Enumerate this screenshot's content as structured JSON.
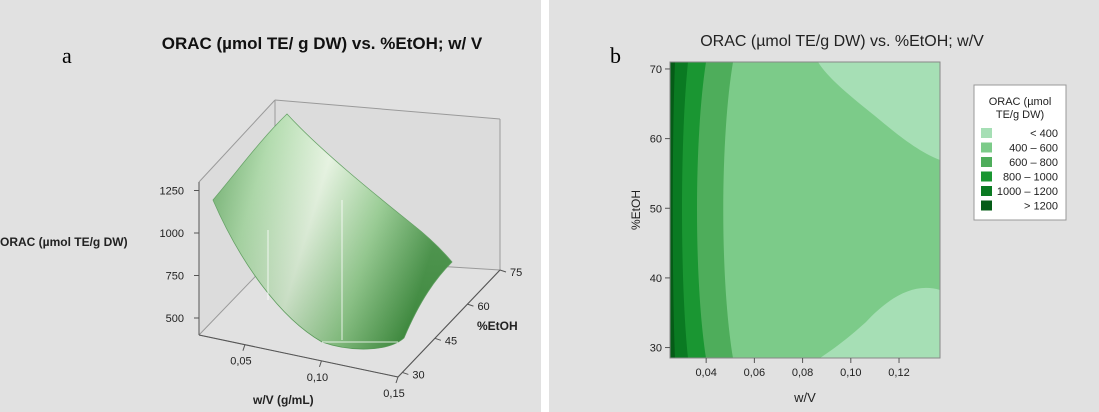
{
  "chart_data": [
    {
      "type": "surface3d",
      "panel_letter": "a",
      "title": "ORAC (µmol TE/ g  DW) vs. %EtOH; w/ V",
      "xlabel": "w/V (g/mL)",
      "ylabel": "%EtOH",
      "zlabel": "ORAC (µmol TE/g  DW)",
      "x_ticks": [
        "0,05",
        "0,10",
        "0,15"
      ],
      "x_tick_values": [
        0.05,
        0.1,
        0.15
      ],
      "y_ticks": [
        "30",
        "45",
        "60",
        "75"
      ],
      "y_tick_values": [
        30,
        45,
        60,
        75
      ],
      "z_ticks": [
        "500",
        "750",
        "1000",
        "1250"
      ],
      "z_tick_values": [
        500,
        750,
        1000,
        1250
      ],
      "xlim": [
        0.02,
        0.15
      ],
      "ylim": [
        28,
        75
      ],
      "zlim": [
        400,
        1300
      ],
      "surface_color": "#7cc17c",
      "background": "#e1e1e1"
    },
    {
      "type": "contour",
      "panel_letter": "b",
      "title": "ORAC (µmol TE/g  DW) vs. %EtOH; w/V",
      "xlabel": "w/V",
      "ylabel": "%EtOH",
      "x_ticks": [
        "0,04",
        "0,06",
        "0,08",
        "0,10",
        "0,12"
      ],
      "x_tick_values": [
        0.04,
        0.06,
        0.08,
        0.1,
        0.12
      ],
      "y_ticks": [
        "30",
        "40",
        "50",
        "60",
        "70"
      ],
      "y_tick_values": [
        30,
        40,
        50,
        60,
        70
      ],
      "xlim": [
        0.025,
        0.137
      ],
      "ylim": [
        28.5,
        71
      ],
      "legend_title": [
        "ORAC (µmol",
        "TE/g  DW)"
      ],
      "legend_position": "right",
      "levels": [
        {
          "label": "<   400",
          "color": "#a6dfb5"
        },
        {
          "label": "400  –   600",
          "color": "#7ccb89"
        },
        {
          "label": "600  –   800",
          "color": "#4ead5b"
        },
        {
          "label": "800  –  1000",
          "color": "#1a9632"
        },
        {
          "label": "1000  –  1200",
          "color": "#0a7a22"
        },
        {
          "label": ">  1200",
          "color": "#055c17"
        }
      ],
      "background": "#e1e1e1"
    }
  ]
}
